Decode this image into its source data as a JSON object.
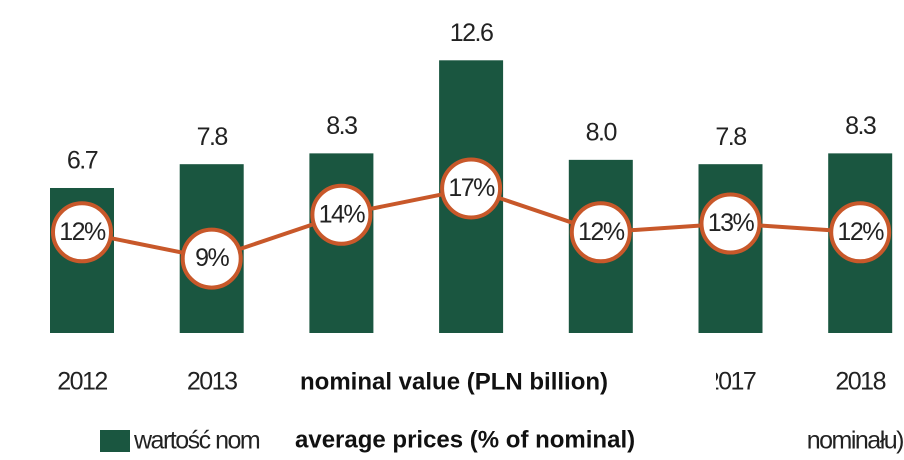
{
  "chart_data": {
    "type": "bar-line",
    "categories": [
      "2012",
      "2013",
      null,
      null,
      null,
      "2017",
      "2018"
    ],
    "series": [
      {
        "name": "wartość nom",
        "color": "#1a5640",
        "values": [
          6.7,
          7.8,
          8.3,
          12.6,
          8.0,
          7.8,
          8.3
        ],
        "value_labels": [
          "6.7",
          "7.8",
          "8.3",
          "12.6",
          "8.0",
          "7.8",
          "8.3"
        ]
      },
      {
        "name": "nominału)",
        "color": "#c8582a",
        "axis": "y2",
        "values": [
          12,
          9,
          14,
          17,
          12,
          13,
          12
        ],
        "value_labels": [
          "12%",
          "9%",
          "14%",
          "17%",
          "12%",
          "13%",
          "12%"
        ]
      }
    ],
    "ylim": [
      0,
      14
    ],
    "y2lim": [
      0.5,
      35.1
    ],
    "annotations": [
      "nominal value (PLN billion)",
      "average prices (% of nominal)"
    ]
  }
}
